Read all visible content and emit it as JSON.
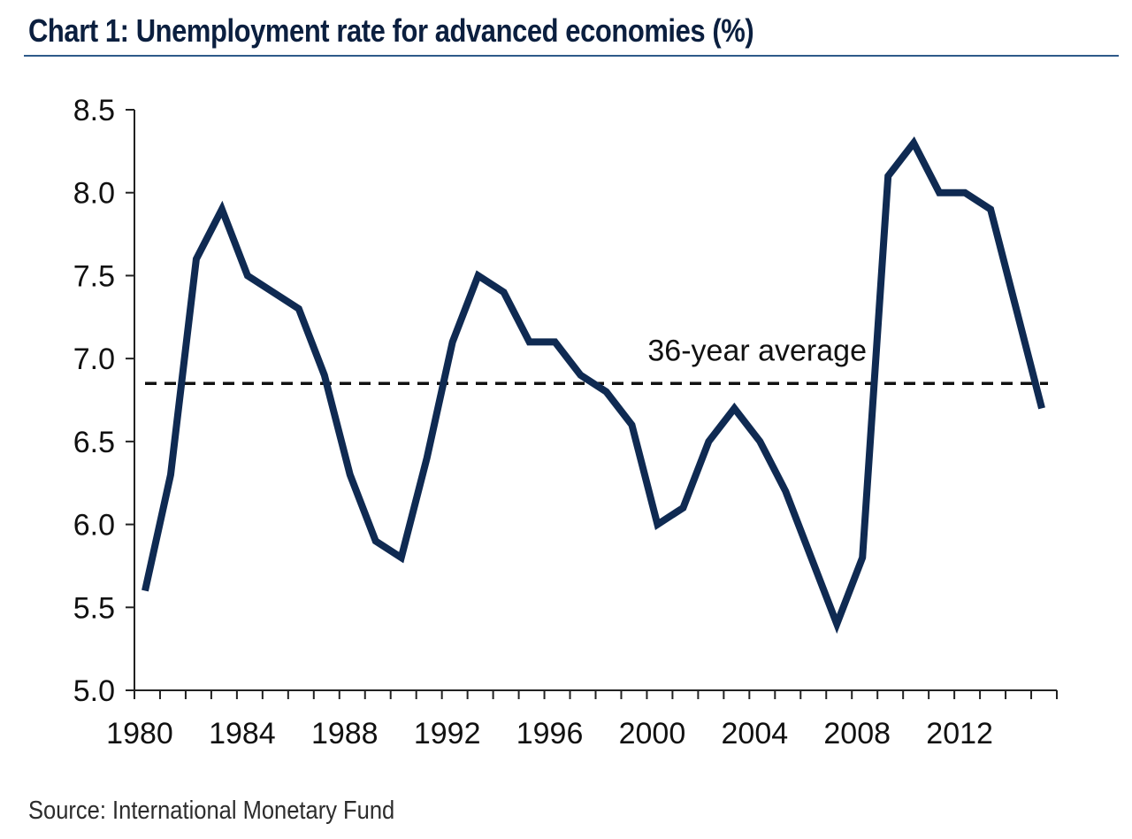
{
  "colors": {
    "series": "#0f2a52",
    "axis": "#222222",
    "average": "#111111",
    "title": "#0b1f3f"
  },
  "chart_data": {
    "type": "line",
    "title": "Chart 1: Unemployment rate for advanced economies (%)",
    "source": "Source: International Monetary Fund",
    "xlabel": "",
    "ylabel": "",
    "xlim": [
      1980,
      2016
    ],
    "ylim": [
      5.0,
      8.5
    ],
    "xticks": [
      1980,
      1984,
      1988,
      1992,
      1996,
      2000,
      2004,
      2008,
      2012
    ],
    "xtick_labels": [
      "1980",
      "1984",
      "1988",
      "1992",
      "1996",
      "2000",
      "2004",
      "2008",
      "2012"
    ],
    "yticks": [
      5.0,
      5.5,
      6.0,
      6.5,
      7.0,
      7.5,
      8.0,
      8.5
    ],
    "ytick_labels": [
      "5.0",
      "5.5",
      "6.0",
      "6.5",
      "7.0",
      "7.5",
      "8.0",
      "8.5"
    ],
    "grid": false,
    "series": [
      {
        "name": "Unemployment rate",
        "x": [
          1980,
          1981,
          1982,
          1983,
          1984,
          1985,
          1986,
          1987,
          1988,
          1989,
          1990,
          1991,
          1992,
          1993,
          1994,
          1995,
          1996,
          1997,
          1998,
          1999,
          2000,
          2001,
          2002,
          2003,
          2004,
          2005,
          2006,
          2007,
          2008,
          2009,
          2010,
          2011,
          2012,
          2013,
          2014,
          2015
        ],
        "values": [
          5.6,
          6.3,
          7.6,
          7.9,
          7.5,
          7.4,
          7.3,
          6.9,
          6.3,
          5.9,
          5.8,
          6.4,
          7.1,
          7.5,
          7.4,
          7.1,
          7.1,
          6.9,
          6.8,
          6.6,
          6.0,
          6.1,
          6.5,
          6.7,
          6.5,
          6.2,
          5.8,
          5.4,
          5.8,
          8.1,
          8.3,
          8.0,
          8.0,
          7.9,
          7.3,
          6.7
        ]
      }
    ],
    "reference_line": {
      "label": "36-year average",
      "value": 6.85,
      "style": "dashed"
    }
  }
}
